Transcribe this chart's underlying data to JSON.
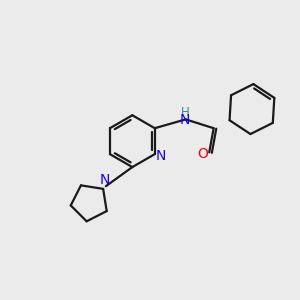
{
  "background_color": "#ebebeb",
  "bond_color": "#1a1a1a",
  "nitrogen_color": "#1400ff",
  "oxygen_color": "#ff0000",
  "nh_color": "#2e8b8b",
  "line_width": 1.6,
  "fig_size": [
    3.0,
    3.0
  ],
  "dpi": 100,
  "xlim": [
    0,
    10
  ],
  "ylim": [
    0,
    10
  ]
}
